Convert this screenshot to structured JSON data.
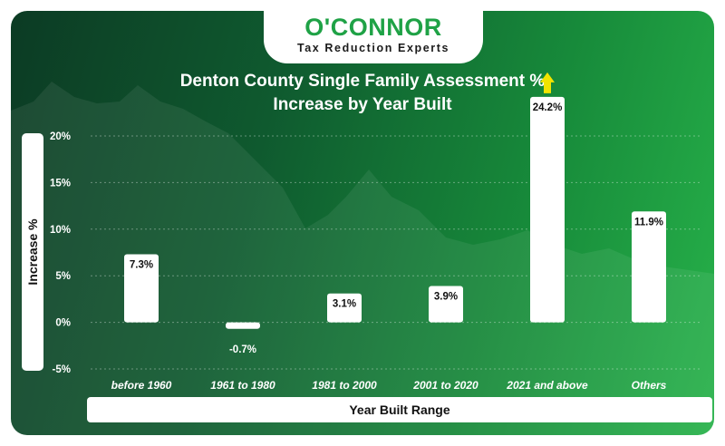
{
  "logo": {
    "name": "O'CONNOR",
    "tagline": "Tax Reduction Experts"
  },
  "colors": {
    "bar": "#ffffff",
    "arrow": "#f2e400",
    "brand_green": "#1fa246"
  },
  "chart_data": {
    "type": "bar",
    "title_lines": [
      "Denton County Single Family Assessment %",
      "Increase by Year Built"
    ],
    "xlabel": "Year Built Range",
    "ylabel": "Increase %",
    "categories": [
      "before 1960",
      "1961 to 1980",
      "1981 to 2000",
      "2001 to 2020",
      "2021 and above",
      "Others"
    ],
    "values": [
      7.3,
      -0.7,
      3.1,
      3.9,
      24.2,
      11.9
    ],
    "value_labels": [
      "7.3%",
      "-0.7%",
      "3.1%",
      "3.9%",
      "24.2%",
      "11.9%"
    ],
    "yticks": [
      20,
      15,
      10,
      5,
      0,
      -5
    ],
    "ytick_labels": [
      "20%",
      "15%",
      "10%",
      "5%",
      "0%",
      "-5%"
    ],
    "ylim": [
      -5,
      20
    ],
    "grid": true,
    "annotation": "up-arrow-above-2021-and-above"
  }
}
